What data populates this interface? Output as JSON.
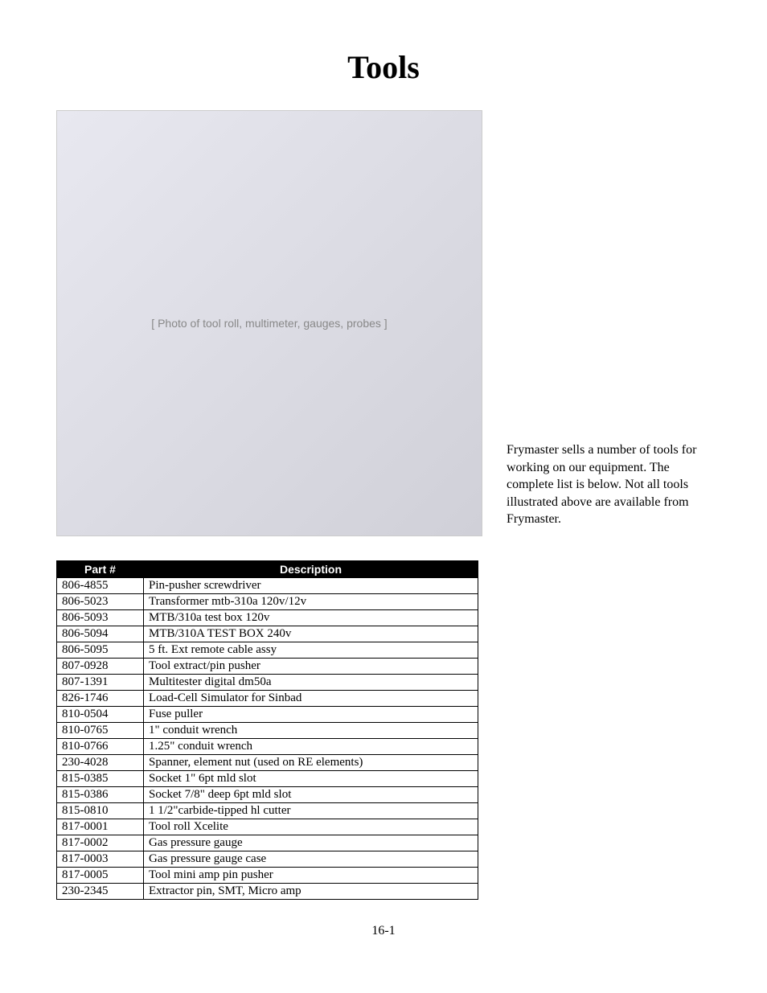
{
  "title": "Tools",
  "image_alt": "[ Photo of tool roll, multimeter, gauges, probes ]",
  "caption": "Frymaster sells a number of tools for working on our equipment. The complete list is below. Not all tools illustrated above are available from Frymaster.",
  "table": {
    "headers": [
      "Part #",
      "Description"
    ],
    "rows": [
      [
        "806-4855",
        "Pin-pusher screwdriver"
      ],
      [
        "806-5023",
        "Transformer mtb-310a 120v/12v"
      ],
      [
        "806-5093",
        "MTB/310a test box 120v"
      ],
      [
        "806-5094",
        "MTB/310A TEST BOX 240v"
      ],
      [
        "806-5095",
        "5 ft. Ext remote cable assy"
      ],
      [
        "807-0928",
        "Tool extract/pin pusher"
      ],
      [
        "807-1391",
        "Multitester digital dm50a"
      ],
      [
        "826-1746",
        "Load-Cell Simulator for Sinbad"
      ],
      [
        "810-0504",
        "Fuse puller"
      ],
      [
        "810-0765",
        "1\" conduit wrench"
      ],
      [
        "810-0766",
        "1.25\" conduit wrench"
      ],
      [
        "230-4028",
        "Spanner, element nut (used on RE elements)"
      ],
      [
        "815-0385",
        "Socket 1\" 6pt mld slot"
      ],
      [
        "815-0386",
        "Socket 7/8\" deep 6pt mld slot"
      ],
      [
        "815-0810",
        "1 1/2\"carbide-tipped hl cutter"
      ],
      [
        "817-0001",
        "Tool roll Xcelite"
      ],
      [
        "817-0002",
        "Gas pressure gauge"
      ],
      [
        "817-0003",
        "Gas pressure gauge case"
      ],
      [
        "817-0005",
        "Tool mini amp pin pusher"
      ],
      [
        "230-2345",
        "Extractor pin, SMT, Micro amp"
      ]
    ]
  },
  "page_number": "16-1"
}
